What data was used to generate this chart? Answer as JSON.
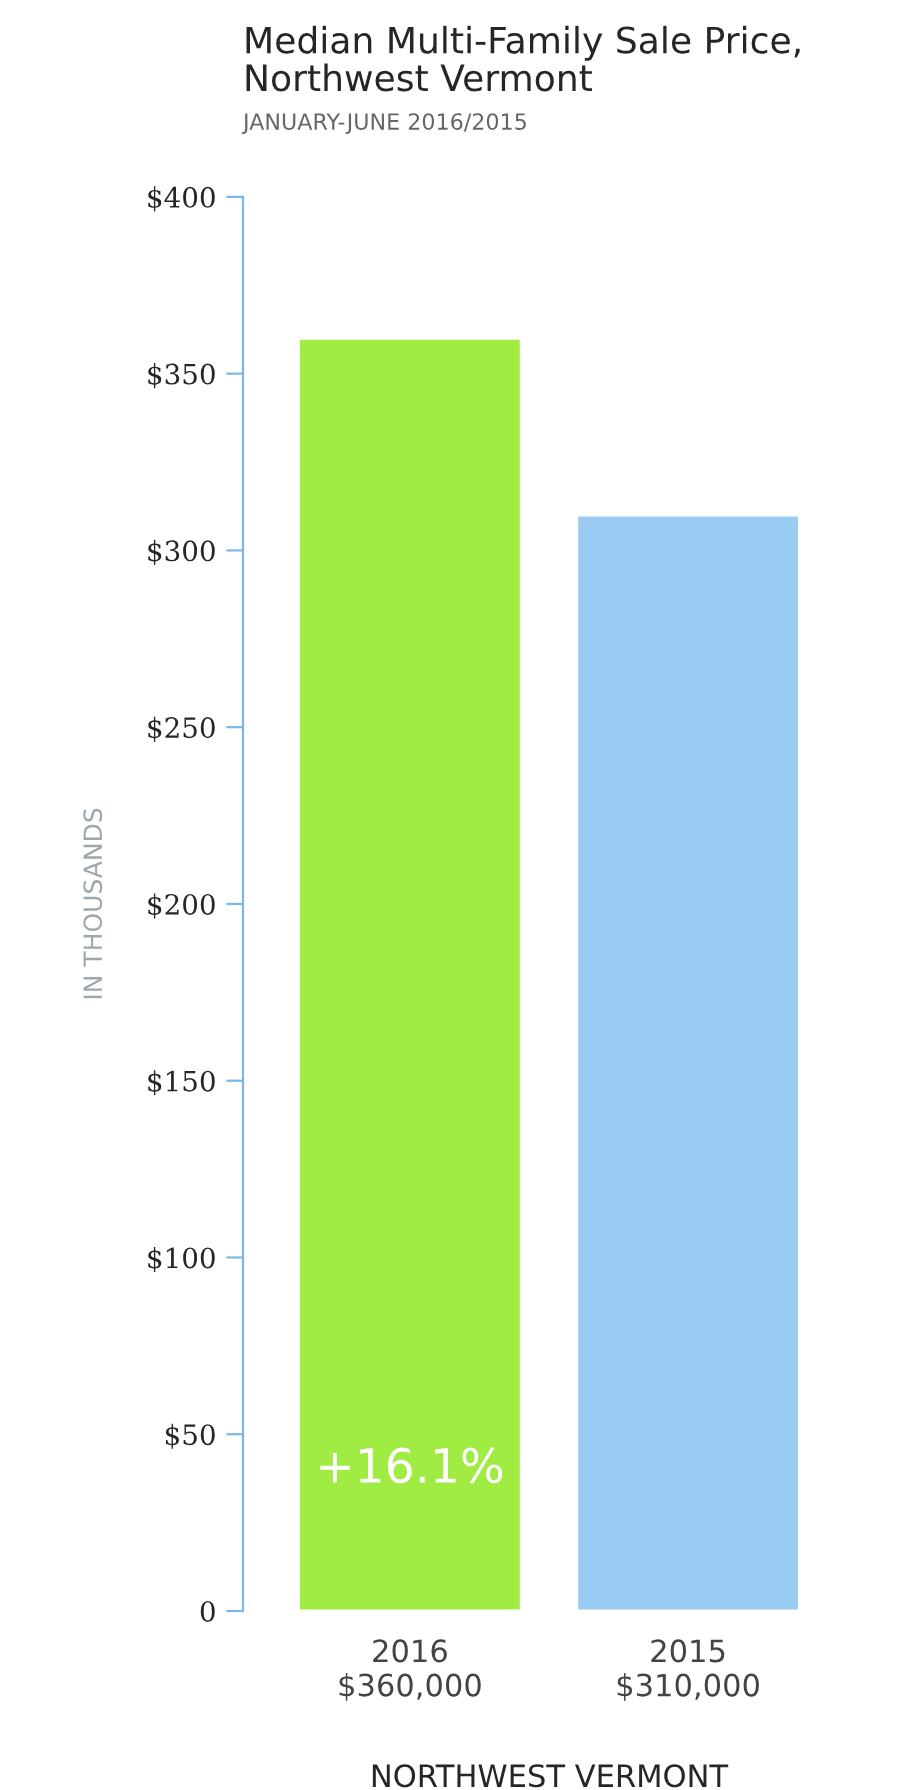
{
  "chart_data": {
    "type": "bar",
    "title": "Median Multi-Family Sale Price,\nNorthwest Vermont",
    "subtitle": "JANUARY-JUNE 2016/2015",
    "xlabel": "NORTHWEST VERMONT",
    "ylabel": "IN THOUSANDS",
    "categories": [
      "2016",
      "2015"
    ],
    "values": [
      360,
      310
    ],
    "colors": [
      "#a0ec42",
      "#9acbf2"
    ],
    "annotations": [
      "+16.1%",
      "$360,000",
      "$310,000"
    ],
    "ylim": [
      0,
      400
    ],
    "yticks": [
      0,
      {
        "value": 50,
        "label": "$50"
      },
      {
        "value": 100,
        "label": "$100"
      },
      {
        "value": 150,
        "label": "$150"
      },
      {
        "value": 200,
        "label": "$200"
      },
      {
        "value": 250,
        "label": "$250"
      },
      {
        "value": 300,
        "label": "$300"
      },
      {
        "value": 350,
        "label": "$350"
      },
      {
        "value": 400,
        "label": "$400"
      }
    ],
    "grid": false,
    "legend": false
  }
}
